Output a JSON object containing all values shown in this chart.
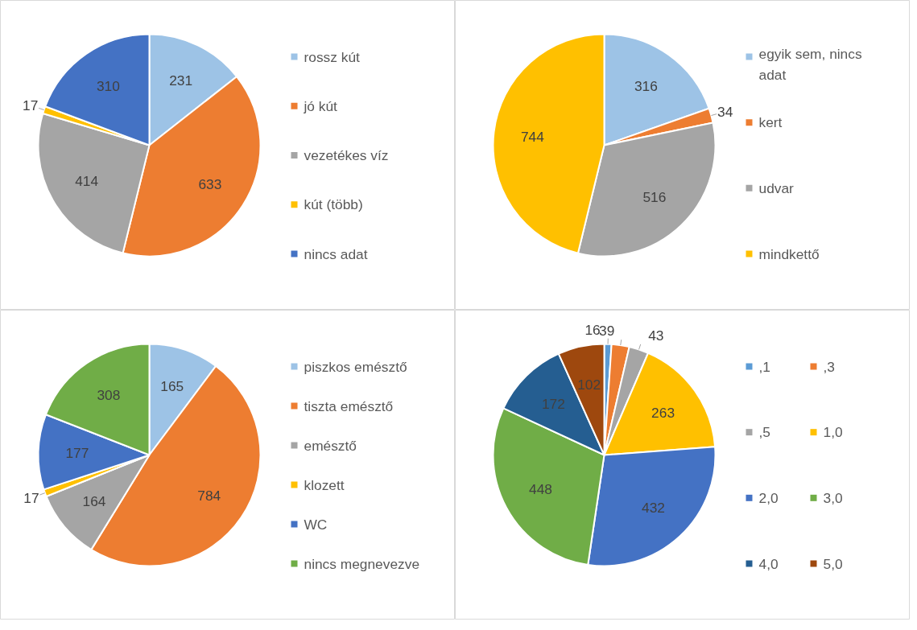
{
  "chart_data": [
    {
      "type": "pie",
      "categories": [
        "rossz kút",
        "jó kút",
        "vezetékes víz",
        "kút (több)",
        "nincs adat"
      ],
      "values": [
        231,
        633,
        414,
        17,
        310
      ],
      "colors": [
        "#9dc3e6",
        "#ed7d31",
        "#a5a5a5",
        "#ffc000",
        "#4472c4"
      ],
      "data_labels": true,
      "legend": "right"
    },
    {
      "type": "pie",
      "categories": [
        "egyik sem, nincs adat",
        "kert",
        "udvar",
        "mindkettő"
      ],
      "values": [
        316,
        34,
        516,
        744
      ],
      "colors": [
        "#9dc3e6",
        "#ed7d31",
        "#a5a5a5",
        "#ffc000"
      ],
      "data_labels": true,
      "legend": "right"
    },
    {
      "type": "pie",
      "categories": [
        "piszkos emésztő",
        "tiszta emésztő",
        "emésztő",
        "klozett",
        "WC",
        "nincs megnevezve"
      ],
      "values": [
        165,
        784,
        164,
        17,
        177,
        308
      ],
      "colors": [
        "#9dc3e6",
        "#ed7d31",
        "#a5a5a5",
        "#ffc000",
        "#4472c4",
        "#70ad47"
      ],
      "data_labels": true,
      "legend": "right"
    },
    {
      "type": "pie",
      "categories": [
        ",1",
        ",3",
        ",5",
        "1,0",
        "2,0",
        "3,0",
        "4,0",
        "5,0"
      ],
      "values": [
        16,
        39,
        43,
        263,
        432,
        448,
        172,
        102
      ],
      "colors": [
        "#5b9bd5",
        "#ed7d31",
        "#a5a5a5",
        "#ffc000",
        "#4472c4",
        "#70ad47",
        "#255e91",
        "#9e480e"
      ],
      "data_labels": true,
      "legend": "right"
    }
  ]
}
